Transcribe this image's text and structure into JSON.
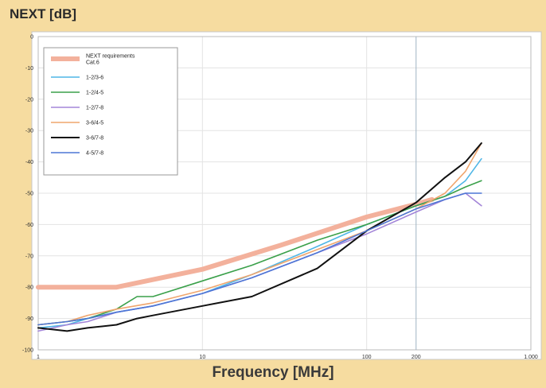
{
  "chart_data": {
    "type": "line",
    "title": "NEXT [dB]",
    "xlabel": "Frequency [MHz]",
    "ylabel": "",
    "x_scale": "log",
    "xlim": [
      1,
      1000
    ],
    "ylim": [
      -100,
      0
    ],
    "x_ticks": [
      1,
      10,
      100,
      200,
      1000
    ],
    "x_tick_labels": [
      "1",
      "10",
      "100",
      "200",
      "1.000"
    ],
    "y_ticks": [
      0,
      -10,
      -20,
      -30,
      -40,
      -50,
      -60,
      -70,
      -80,
      -90,
      -100
    ],
    "y_tick_labels": [
      "0",
      "-10",
      "-20",
      "-30",
      "-40",
      "-50",
      "-60",
      "-70",
      "-80",
      "-90",
      "-100"
    ],
    "grid": true,
    "reference_line_x": 200,
    "legend_position": "top-left",
    "series": [
      {
        "name": "NEXT requirements Cat.6",
        "color": "#f3b19c",
        "width": 6,
        "x": [
          1,
          3,
          10,
          30,
          100,
          200,
          250
        ],
        "y": [
          -80,
          -80,
          -74.3,
          -66.6,
          -57.6,
          -53.5,
          -52
        ]
      },
      {
        "name": "1-2/3-6",
        "color": "#4fb6e6",
        "width": 1.6,
        "x": [
          1,
          1.5,
          2,
          3,
          5,
          10,
          20,
          50,
          100,
          200,
          300,
          400,
          500
        ],
        "y": [
          -93,
          -92,
          -90,
          -88,
          -86,
          -82,
          -76,
          -67,
          -60,
          -54,
          -51,
          -46,
          -39
        ]
      },
      {
        "name": "1-2/4-5",
        "color": "#3aa04a",
        "width": 1.6,
        "x": [
          1,
          1.5,
          2,
          3,
          4,
          5,
          10,
          20,
          50,
          100,
          200,
          300,
          400,
          500
        ],
        "y": [
          -92,
          -91,
          -90,
          -87,
          -83,
          -83,
          -78,
          -73,
          -65,
          -60,
          -54,
          -51,
          -48,
          -46
        ]
      },
      {
        "name": "1-2/7-8",
        "color": "#a385d8",
        "width": 1.6,
        "x": [
          1,
          1.5,
          2,
          3,
          5,
          10,
          20,
          50,
          100,
          200,
          300,
          400,
          500
        ],
        "y": [
          -94,
          -92,
          -91,
          -88,
          -86,
          -82,
          -77,
          -69,
          -63,
          -56,
          -52,
          -50,
          -54
        ]
      },
      {
        "name": "3-6/4-5",
        "color": "#efa56d",
        "width": 1.6,
        "x": [
          1,
          1.5,
          2,
          3,
          5,
          10,
          20,
          50,
          100,
          200,
          300,
          400,
          500
        ],
        "y": [
          -92,
          -91,
          -89,
          -87,
          -85,
          -81,
          -76,
          -68,
          -62,
          -55,
          -50,
          -43,
          -34
        ]
      },
      {
        "name": "3-6/7-8",
        "color": "#111111",
        "width": 2,
        "x": [
          1,
          1.5,
          2,
          3,
          4,
          5,
          10,
          20,
          50,
          100,
          200,
          300,
          400,
          500
        ],
        "y": [
          -93,
          -94,
          -93,
          -92,
          -90,
          -89,
          -86,
          -83,
          -74,
          -62,
          -53,
          -45,
          -40,
          -34
        ]
      },
      {
        "name": "4-5/7-8",
        "color": "#4d76d6",
        "width": 1.6,
        "x": [
          1,
          1.5,
          2,
          3,
          5,
          10,
          20,
          50,
          100,
          200,
          300,
          400,
          500
        ],
        "y": [
          -92,
          -91,
          -90,
          -88,
          -86,
          -82,
          -77,
          -69,
          -62,
          -55,
          -52,
          -50,
          -50
        ]
      }
    ]
  }
}
